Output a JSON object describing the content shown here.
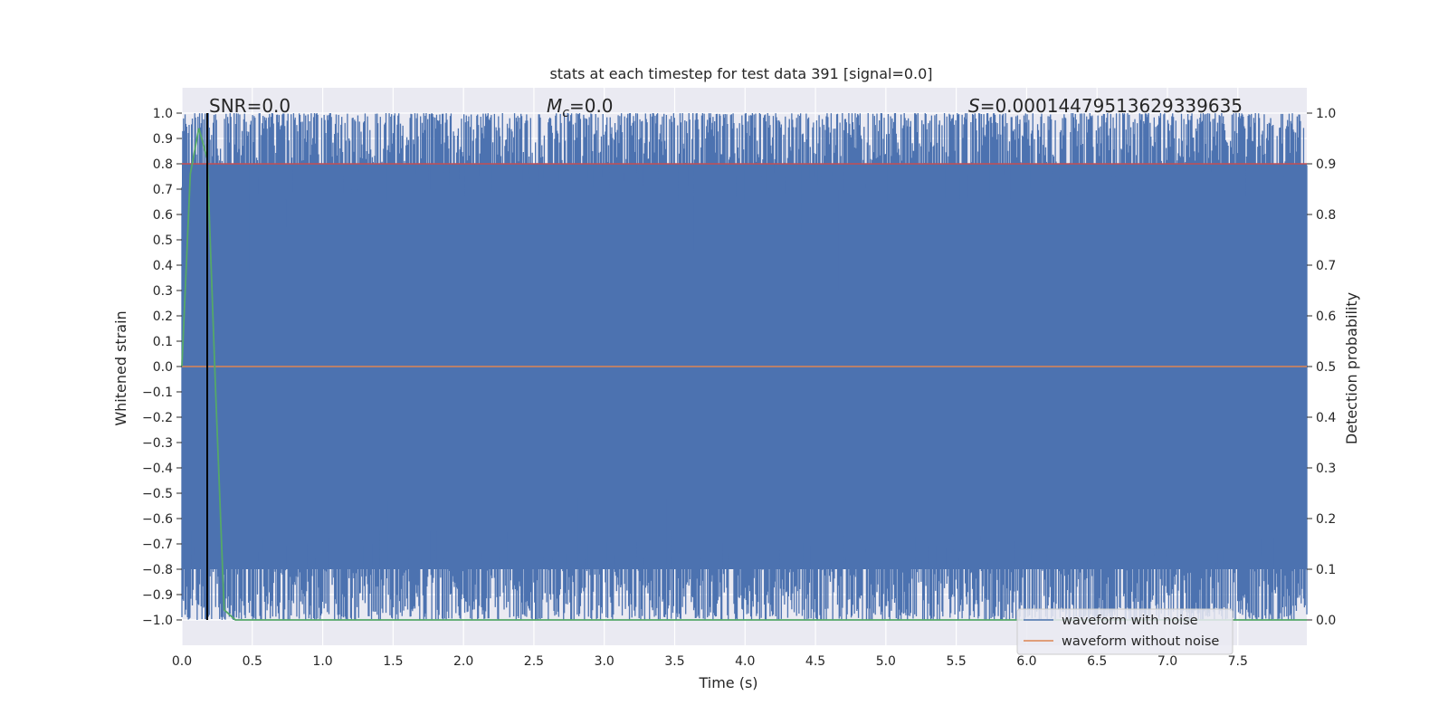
{
  "chart_data": {
    "type": "line",
    "title": "stats at each timestep for test data 391 [signal=0.0]",
    "xlabel": "Time (s)",
    "ylabel": "Whitened strain",
    "y2label": "Detection probability",
    "xlim": [
      0.0,
      7.99
    ],
    "ylim": [
      -1.1,
      1.1
    ],
    "y2lim": [
      -0.05,
      1.05
    ],
    "xticks": [
      "0.0",
      "0.5",
      "1.0",
      "1.5",
      "2.0",
      "2.5",
      "3.0",
      "3.5",
      "4.0",
      "4.5",
      "5.0",
      "5.5",
      "6.0",
      "6.5",
      "7.0",
      "7.5"
    ],
    "yticks": [
      "1.0",
      "0.9",
      "0.8",
      "0.7",
      "0.6",
      "0.5",
      "0.4",
      "0.3",
      "0.2",
      "0.1",
      "0.0",
      "−0.1",
      "−0.2",
      "−0.3",
      "−0.4",
      "−0.5",
      "−0.6",
      "−0.7",
      "−0.8",
      "−0.9",
      "−1.0"
    ],
    "y2ticks": [
      "1.0",
      "0.9",
      "0.8",
      "0.7",
      "0.6",
      "0.5",
      "0.4",
      "0.3",
      "0.2",
      "0.1",
      "0.0"
    ],
    "grid": true,
    "legend_position": "bottom-right",
    "annotations": {
      "snr_prefix": "SNR",
      "snr_value": "=0.0",
      "mc_symbol": "M",
      "mc_sub": "c",
      "mc_value": "=0.0",
      "s_symbol": "S",
      "s_value": "=0.00014479513629339635"
    },
    "series": [
      {
        "name": "waveform with noise",
        "color": "#4c72b0",
        "axis": "left",
        "description_values": "dense noise spanning roughly -1.0 to 1.0 over the full time range",
        "band_top": 1.0,
        "band_bottom": -1.0
      },
      {
        "name": "waveform without noise",
        "color": "#dd8452",
        "axis": "left",
        "x": [
          0.0,
          7.99
        ],
        "y": [
          0.0,
          0.0
        ]
      },
      {
        "color": "#55a868",
        "axis": "right",
        "x": [
          0.0,
          0.06,
          0.12,
          0.18,
          0.24,
          0.3,
          0.38,
          7.99
        ],
        "y": [
          0.5,
          0.88,
          0.97,
          0.91,
          0.45,
          0.02,
          0.0,
          0.0
        ]
      },
      {
        "color": "#c44e52",
        "axis": "right",
        "x": [
          0.0,
          7.99
        ],
        "y": [
          0.9,
          0.9
        ]
      }
    ],
    "vline": {
      "x": 0.18,
      "color": "#000000"
    }
  }
}
